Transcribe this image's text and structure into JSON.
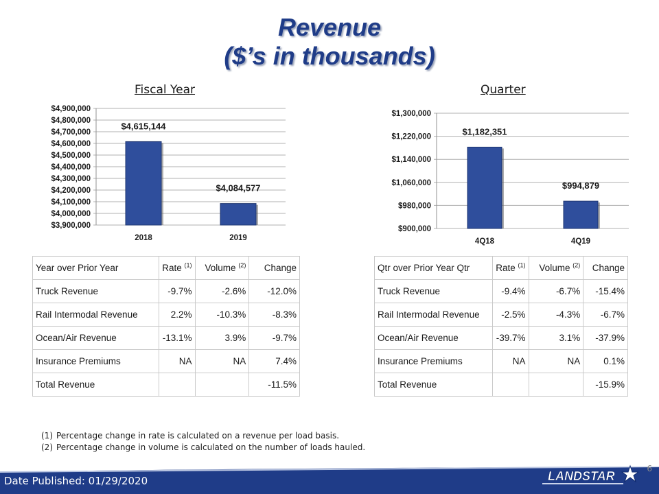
{
  "slide": {
    "title_line1": "Revenue",
    "title_line2": "($’s in thousands)",
    "page_number": "6",
    "date_published": "Date Published:  01/29/2020",
    "logo_text": "LANDSTAR"
  },
  "colors": {
    "title": "#1f3c88",
    "bar": "#2f4e9c",
    "footer": "#1f3c88"
  },
  "chart_data": [
    {
      "type": "bar",
      "title": "Fiscal Year",
      "categories": [
        "2018",
        "2019"
      ],
      "values": [
        4615144,
        4084577
      ],
      "data_labels": [
        "$4,615,144",
        "$4,084,577"
      ],
      "ylim": [
        3900000,
        4900000
      ],
      "ytick_values": [
        3900000,
        4000000,
        4100000,
        4200000,
        4300000,
        4400000,
        4500000,
        4600000,
        4700000,
        4800000,
        4900000
      ],
      "ytick_labels": [
        "$3,900,000",
        "$4,000,000",
        "$4,100,000",
        "$4,200,000",
        "$4,300,000",
        "$4,400,000",
        "$4,500,000",
        "$4,600,000",
        "$4,700,000",
        "$4,800,000",
        "$4,900,000"
      ],
      "grid": true
    },
    {
      "type": "bar",
      "title": "Quarter",
      "categories": [
        "4Q18",
        "4Q19"
      ],
      "values": [
        1182351,
        994879
      ],
      "data_labels": [
        "$1,182,351",
        "$994,879"
      ],
      "ylim": [
        900000,
        1300000
      ],
      "ytick_values": [
        900000,
        980000,
        1060000,
        1140000,
        1220000,
        1300000
      ],
      "ytick_labels": [
        "$900,000",
        "$980,000",
        "$1,060,000",
        "$1,140,000",
        "$1,220,000",
        "$1,300,000"
      ],
      "grid": true
    }
  ],
  "table_year": {
    "header": [
      "Year over Prior Year",
      "Rate",
      "(1)",
      "Volume",
      "(2)",
      "Change"
    ],
    "rows": [
      [
        "Truck Revenue",
        "-9.7%",
        "-2.6%",
        "-12.0%"
      ],
      [
        "Rail Intermodal Revenue",
        "2.2%",
        "-10.3%",
        "-8.3%"
      ],
      [
        "Ocean/Air Revenue",
        "-13.1%",
        "3.9%",
        "-9.7%"
      ],
      [
        "Insurance Premiums",
        "NA",
        "NA",
        "7.4%"
      ],
      [
        "Total Revenue",
        "",
        "",
        "-11.5%"
      ]
    ]
  },
  "table_quarter": {
    "header": [
      "Qtr over Prior Year Qtr",
      "Rate",
      "(1)",
      "Volume",
      "(2)",
      "Change"
    ],
    "rows": [
      [
        "Truck Revenue",
        "-9.4%",
        "-6.7%",
        "-15.4%"
      ],
      [
        "Rail Intermodal Revenue",
        "-2.5%",
        "-4.3%",
        "-6.7%"
      ],
      [
        "Ocean/Air Revenue",
        "-39.7%",
        "3.1%",
        "-37.9%"
      ],
      [
        "Insurance Premiums",
        "NA",
        "NA",
        "0.1%"
      ],
      [
        "Total Revenue",
        "",
        "",
        "-15.9%"
      ]
    ]
  },
  "footnotes": [
    {
      "num": "(1)",
      "text": "Percentage change in rate is calculated on a revenue per load basis."
    },
    {
      "num": "(2)",
      "text": "Percentage change in volume is calculated on the number of loads hauled."
    }
  ]
}
